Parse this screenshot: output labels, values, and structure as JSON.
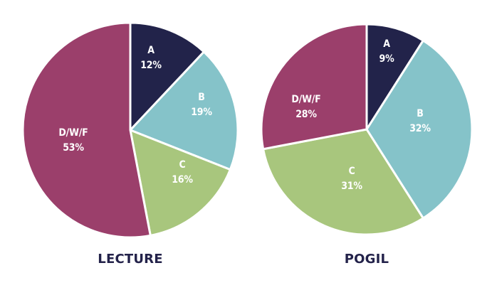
{
  "chart_data": [
    {
      "type": "pie",
      "title": "LECTURE",
      "categories": [
        "A",
        "B",
        "C",
        "D/W/F"
      ],
      "values": [
        12,
        19,
        16,
        53
      ],
      "labels": [
        "12%",
        "19%",
        "16%",
        "53%"
      ],
      "colors": [
        "#22234a",
        "#85c3c9",
        "#a8c67d",
        "#9b3f6b"
      ],
      "start_angle_deg": 0,
      "direction": "clockwise"
    },
    {
      "type": "pie",
      "title": "POGIL",
      "categories": [
        "A",
        "B",
        "C",
        "D/W/F"
      ],
      "values": [
        9,
        32,
        31,
        28
      ],
      "labels": [
        "9%",
        "32%",
        "31%",
        "28%"
      ],
      "colors": [
        "#22234a",
        "#85c3c9",
        "#a8c67d",
        "#9b3f6b"
      ],
      "start_angle_deg": 0,
      "direction": "clockwise"
    }
  ]
}
